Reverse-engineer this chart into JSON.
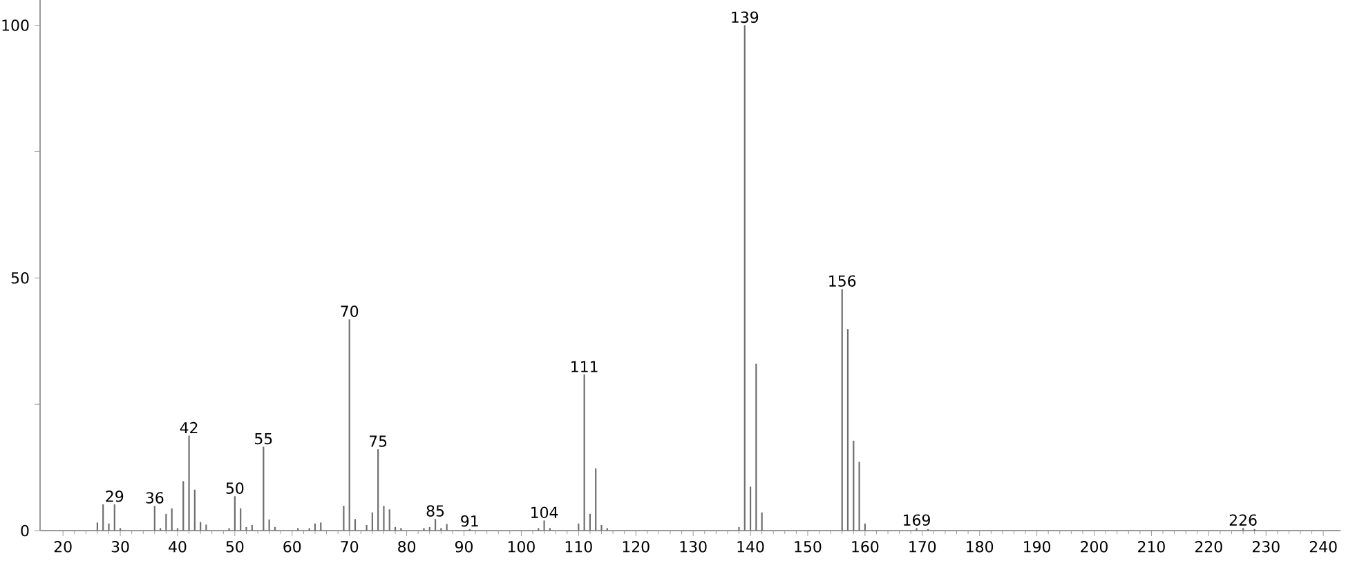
{
  "chart_data": {
    "type": "bar",
    "color": "#6e6e6e",
    "x": [
      26,
      27,
      28,
      29,
      30,
      36,
      37,
      38,
      39,
      40,
      41,
      42,
      43,
      44,
      45,
      49,
      50,
      51,
      52,
      53,
      55,
      56,
      57,
      61,
      63,
      64,
      65,
      69,
      70,
      71,
      73,
      74,
      75,
      76,
      77,
      78,
      79,
      83,
      84,
      85,
      86,
      87,
      91,
      103,
      104,
      105,
      110,
      111,
      112,
      113,
      114,
      115,
      138,
      139,
      140,
      141,
      142,
      156,
      157,
      158,
      159,
      160,
      169,
      171,
      226,
      228
    ],
    "values": [
      1.6,
      5.2,
      1.4,
      5.2,
      0.5,
      4.9,
      0.5,
      3.3,
      4.4,
      0.5,
      9.8,
      18.8,
      8.1,
      1.7,
      1.2,
      0.5,
      6.8,
      4.4,
      0.7,
      1.1,
      16.6,
      2.2,
      0.7,
      0.5,
      0.5,
      1.4,
      1.6,
      4.9,
      41.8,
      2.3,
      1.1,
      3.6,
      16.1,
      4.9,
      4.2,
      0.7,
      0.5,
      0.5,
      0.7,
      2.3,
      0.5,
      1.3,
      0.3,
      0.5,
      2.0,
      0.5,
      1.4,
      30.9,
      3.3,
      12.3,
      1.1,
      0.5,
      0.7,
      100,
      8.7,
      33.0,
      3.6,
      47.8,
      39.9,
      17.8,
      13.6,
      1.4,
      0.5,
      0.3,
      0.5,
      0.3
    ],
    "xlim": [
      16,
      243
    ],
    "ylim": [
      0,
      105
    ],
    "xticks": [
      20,
      30,
      40,
      50,
      60,
      70,
      80,
      90,
      100,
      110,
      120,
      130,
      140,
      150,
      160,
      170,
      180,
      190,
      200,
      210,
      220,
      230,
      240
    ],
    "yticks": [
      0,
      {
        "value": 25,
        "label": null
      },
      50,
      {
        "value": 75,
        "label": null
      },
      100
    ],
    "annotations": [
      {
        "text": "29",
        "x": 29,
        "y": 5.2
      },
      {
        "text": "36",
        "x": 36,
        "y": 4.9
      },
      {
        "text": "42",
        "x": 42,
        "y": 18.8
      },
      {
        "text": "50",
        "x": 50,
        "y": 6.8
      },
      {
        "text": "55",
        "x": 55,
        "y": 16.6
      },
      {
        "text": "70",
        "x": 70,
        "y": 41.8
      },
      {
        "text": "75",
        "x": 75,
        "y": 16.1
      },
      {
        "text": "85",
        "x": 85,
        "y": 2.3
      },
      {
        "text": "91",
        "x": 91,
        "y": 0.3
      },
      {
        "text": "104",
        "x": 104,
        "y": 2.0
      },
      {
        "text": "111",
        "x": 111,
        "y": 30.9
      },
      {
        "text": "139",
        "x": 139,
        "y": 100
      },
      {
        "text": "156",
        "x": 156,
        "y": 47.8
      },
      {
        "text": "169",
        "x": 169,
        "y": 0.5
      },
      {
        "text": "226",
        "x": 226,
        "y": 0.5
      }
    ]
  }
}
